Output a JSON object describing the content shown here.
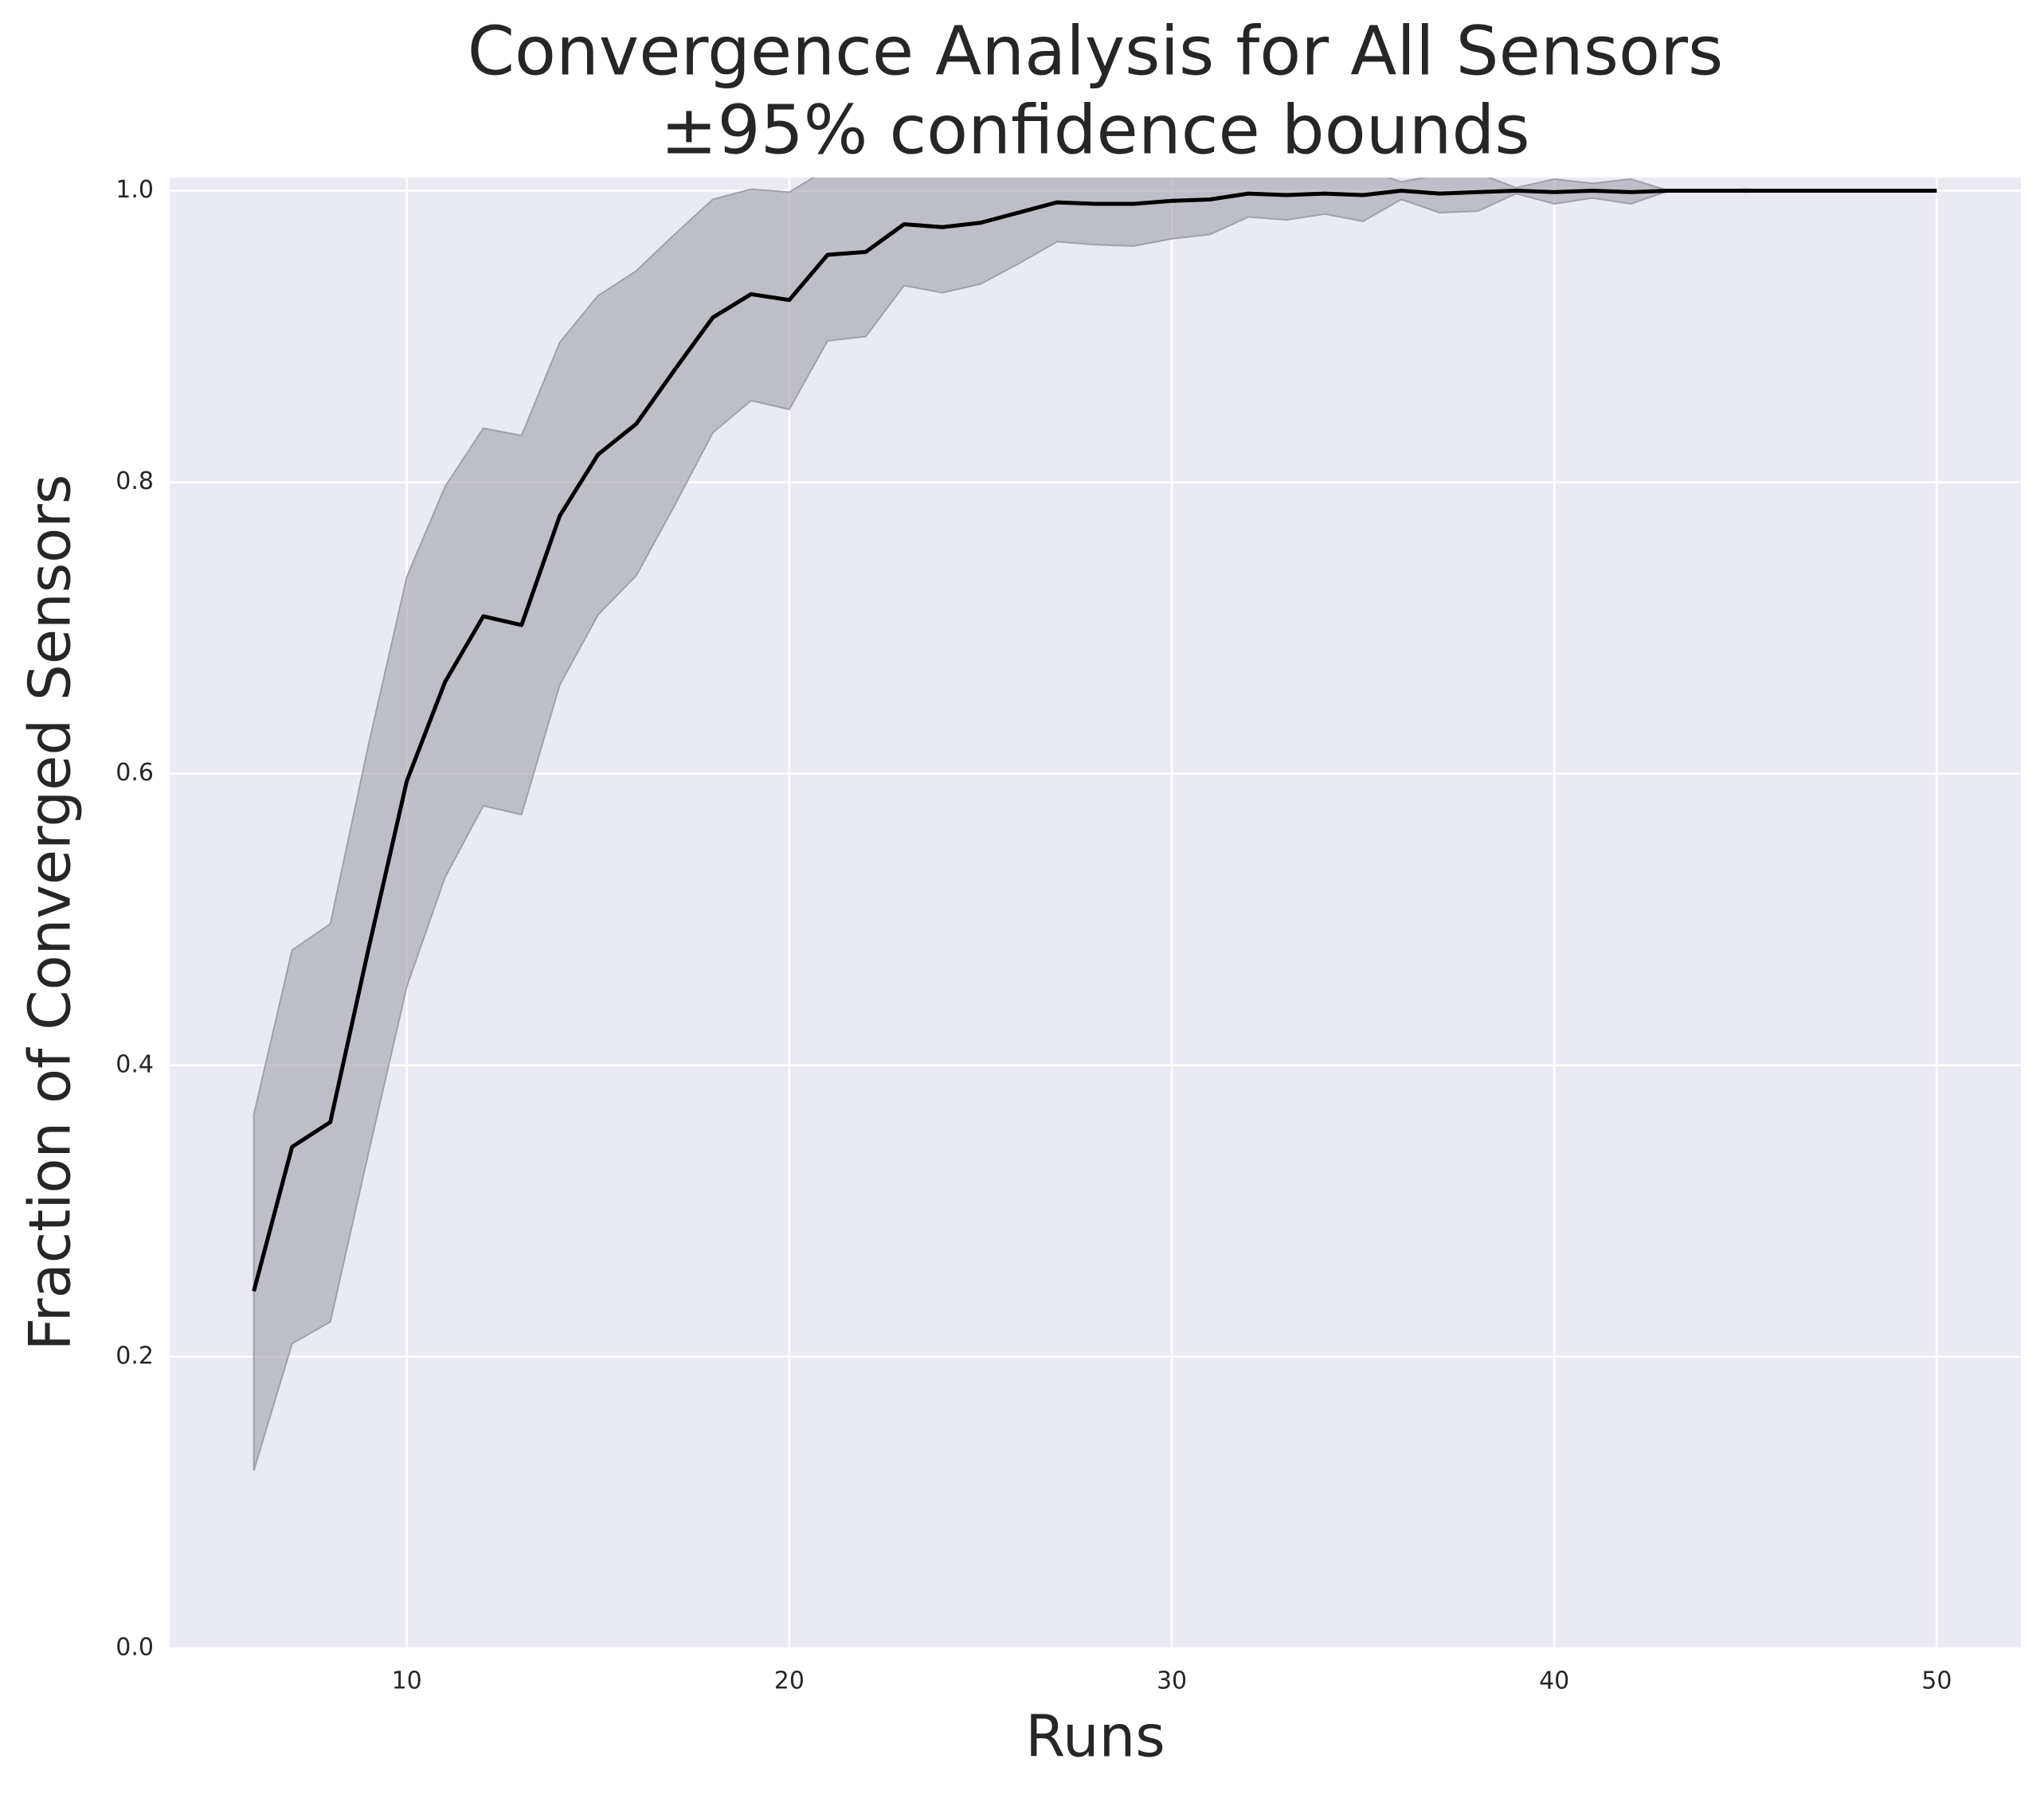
{
  "chart_data": {
    "type": "line",
    "title": "Convergence Analysis for All Sensors",
    "subtitle": "±95% confidence bounds",
    "x_label": "Runs",
    "y_label": "Fraction of Converged Sensors",
    "x": [
      6,
      7,
      8,
      9,
      10,
      11,
      12,
      13,
      14,
      15,
      16,
      17,
      18,
      19,
      20,
      21,
      22,
      23,
      24,
      25,
      26,
      27,
      28,
      29,
      30,
      31,
      32,
      33,
      34,
      35,
      36,
      37,
      38,
      39,
      40,
      41,
      42,
      43,
      44,
      45,
      46,
      47,
      48,
      49,
      50
    ],
    "values": [
      0.245,
      0.344,
      0.361,
      0.48,
      0.595,
      0.663,
      0.708,
      0.702,
      0.777,
      0.819,
      0.84,
      0.877,
      0.913,
      0.929,
      0.925,
      0.956,
      0.958,
      0.977,
      0.975,
      0.978,
      0.985,
      0.992,
      0.991,
      0.991,
      0.993,
      0.994,
      0.998,
      0.997,
      0.998,
      0.997,
      1.0,
      0.998,
      0.999,
      1.0,
      0.999,
      1.0,
      0.999,
      1.0,
      1.0,
      1.0,
      1.0,
      1.0,
      1.0,
      1.0,
      1.0
    ],
    "lower": [
      0.122,
      0.209,
      0.224,
      0.34,
      0.454,
      0.529,
      0.578,
      0.572,
      0.661,
      0.709,
      0.736,
      0.784,
      0.834,
      0.856,
      0.85,
      0.897,
      0.9,
      0.935,
      0.93,
      0.936,
      0.95,
      0.965,
      0.963,
      0.962,
      0.967,
      0.97,
      0.982,
      0.98,
      0.984,
      0.979,
      0.994,
      0.985,
      0.986,
      0.998,
      0.991,
      0.995,
      0.991,
      1.0,
      1.0,
      0.999,
      1.0,
      1.0,
      1.0,
      1.0,
      1.0
    ],
    "upper": [
      0.366,
      0.479,
      0.497,
      0.62,
      0.735,
      0.797,
      0.837,
      0.832,
      0.896,
      0.928,
      0.945,
      0.97,
      0.994,
      1.001,
      0.999,
      1.015,
      1.016,
      1.02,
      1.02,
      1.02,
      1.02,
      1.02,
      1.02,
      1.02,
      1.019,
      1.018,
      1.014,
      1.014,
      1.012,
      1.015,
      1.006,
      1.011,
      1.012,
      1.002,
      1.008,
      1.005,
      1.008,
      1.0,
      1.0,
      1.001,
      1.0,
      1.0,
      1.0,
      1.0,
      1.0
    ],
    "color": "#000000",
    "band_color": "#a0a0a8",
    "background": "#eaeaf2",
    "grid": true,
    "xlim": [
      3.8,
      52.2
    ],
    "ylim": [
      0,
      1.009
    ],
    "xticks": [
      10,
      20,
      30,
      40,
      50
    ],
    "yticks": [
      {
        "value": 0,
        "label": "0.0"
      },
      0.2,
      0.4,
      0.6,
      0.8,
      {
        "value": 1,
        "label": "1.0"
      }
    ]
  }
}
